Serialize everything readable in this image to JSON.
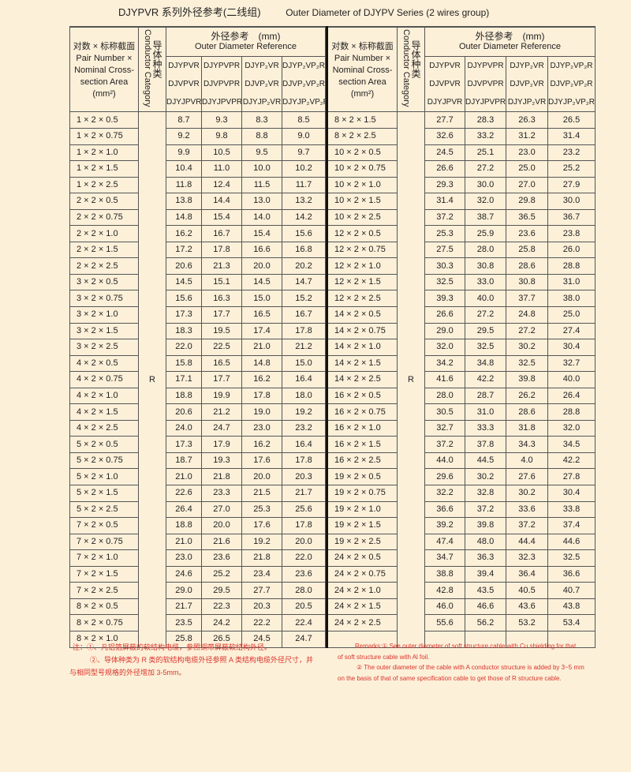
{
  "title": {
    "cn": "DJYPVR 系列外径参考(二线组)",
    "en": "Outer Diameter of DJYPV Series (2 wires group)"
  },
  "header": {
    "size_cn": "对数 × 标称截面",
    "size_en_1": "Pair Number ×",
    "size_en_2": "Nominal Cross-",
    "size_en_3": "section Area",
    "size_unit": "(mm²)",
    "conductor_en": "Conductor Category",
    "conductor_cn": "导体种类",
    "od_cn": "外径参考　(mm)",
    "od_en": "Outer Diameter Reference",
    "models": [
      [
        "DJYPVR",
        "DJVPVR",
        "DJYJPVR"
      ],
      [
        "DJYPVPR",
        "DJVPVPR",
        "DJYJPVPR"
      ],
      [
        "DJYP₂VR",
        "DJVP₂VR",
        "DJYJP₂VR"
      ],
      [
        "DJYP₂VP₂R",
        "DJVP₂VP₂R",
        "DJYJP₂VP₂R"
      ]
    ]
  },
  "conductor_value": "R",
  "left_rows": [
    [
      "1 × 2 × 0.5",
      "8.7",
      "9.3",
      "8.3",
      "8.5"
    ],
    [
      "1 × 2 × 0.75",
      "9.2",
      "9.8",
      "8.8",
      "9.0"
    ],
    [
      "1 × 2 × 1.0",
      "9.9",
      "10.5",
      "9.5",
      "9.7"
    ],
    [
      "1 × 2 × 1.5",
      "10.4",
      "11.0",
      "10.0",
      "10.2"
    ],
    [
      "1 × 2 × 2.5",
      "11.8",
      "12.4",
      "11.5",
      "11.7"
    ],
    [
      "2 × 2 × 0.5",
      "13.8",
      "14.4",
      "13.0",
      "13.2"
    ],
    [
      "2 × 2 × 0.75",
      "14.8",
      "15.4",
      "14.0",
      "14.2"
    ],
    [
      "2 × 2 × 1.0",
      "16.2",
      "16.7",
      "15.4",
      "15.6"
    ],
    [
      "2 × 2 × 1.5",
      "17.2",
      "17.8",
      "16.6",
      "16.8"
    ],
    [
      "2 × 2 × 2.5",
      "20.6",
      "21.3",
      "20.0",
      "20.2"
    ],
    [
      "3 × 2 × 0.5",
      "14.5",
      "15.1",
      "14.5",
      "14.7"
    ],
    [
      "3 × 2 × 0.75",
      "15.6",
      "16.3",
      "15.0",
      "15.2"
    ],
    [
      "3 × 2 × 1.0",
      "17.3",
      "17.7",
      "16.5",
      "16.7"
    ],
    [
      "3 × 2 × 1.5",
      "18.3",
      "19.5",
      "17.4",
      "17.8"
    ],
    [
      "3 × 2 × 2.5",
      "22.0",
      "22.5",
      "21.0",
      "21.2"
    ],
    [
      "4 × 2 × 0.5",
      "15.8",
      "16.5",
      "14.8",
      "15.0"
    ],
    [
      "4 × 2 × 0.75",
      "17.1",
      "17.7",
      "16.2",
      "16.4"
    ],
    [
      "4 × 2 × 1.0",
      "18.8",
      "19.9",
      "17.8",
      "18.0"
    ],
    [
      "4 × 2 × 1.5",
      "20.6",
      "21.2",
      "19.0",
      "19.2"
    ],
    [
      "4 × 2 × 2.5",
      "24.0",
      "24.7",
      "23.0",
      "23.2"
    ],
    [
      "5 × 2 × 0.5",
      "17.3",
      "17.9",
      "16.2",
      "16.4"
    ],
    [
      "5 × 2 × 0.75",
      "18.7",
      "19.3",
      "17.6",
      "17.8"
    ],
    [
      "5 × 2 × 1.0",
      "21.0",
      "21.8",
      "20.0",
      "20.3"
    ],
    [
      "5 × 2 × 1.5",
      "22.6",
      "23.3",
      "21.5",
      "21.7"
    ],
    [
      "5 × 2 × 2.5",
      "26.4",
      "27.0",
      "25.3",
      "25.6"
    ],
    [
      "7 × 2 × 0.5",
      "18.8",
      "20.0",
      "17.6",
      "17.8"
    ],
    [
      "7 × 2 × 0.75",
      "21.0",
      "21.6",
      "19.2",
      "20.0"
    ],
    [
      "7 × 2 × 1.0",
      "23.0",
      "23.6",
      "21.8",
      "22.0"
    ],
    [
      "7 × 2 × 1.5",
      "24.6",
      "25.2",
      "23.4",
      "23.6"
    ],
    [
      "7 × 2 × 2.5",
      "29.0",
      "29.5",
      "27.7",
      "28.0"
    ],
    [
      "8 × 2 × 0.5",
      "21.7",
      "22.3",
      "20.3",
      "20.5"
    ],
    [
      "8 × 2 × 0.75",
      "23.5",
      "24.2",
      "22.2",
      "22.4"
    ],
    [
      "8 × 2 × 1.0",
      "25.8",
      "26.5",
      "24.5",
      "24.7"
    ]
  ],
  "right_rows": [
    [
      "8 × 2 × 1.5",
      "27.7",
      "28.3",
      "26.3",
      "26.5"
    ],
    [
      "8 × 2 × 2.5",
      "32.6",
      "33.2",
      "31.2",
      "31.4"
    ],
    [
      "10 × 2 × 0.5",
      "24.5",
      "25.1",
      "23.0",
      "23.2"
    ],
    [
      "10 × 2 × 0.75",
      "26.6",
      "27.2",
      "25.0",
      "25.2"
    ],
    [
      "10 × 2 × 1.0",
      "29.3",
      "30.0",
      "27.0",
      "27.9"
    ],
    [
      "10 × 2 × 1.5",
      "31.4",
      "32.0",
      "29.8",
      "30.0"
    ],
    [
      "10 × 2 × 2.5",
      "37.2",
      "38.7",
      "36.5",
      "36.7"
    ],
    [
      "12 × 2 × 0.5",
      "25.3",
      "25.9",
      "23.6",
      "23.8"
    ],
    [
      "12 × 2 × 0.75",
      "27.5",
      "28.0",
      "25.8",
      "26.0"
    ],
    [
      "12 × 2 × 1.0",
      "30.3",
      "30.8",
      "28.6",
      "28.8"
    ],
    [
      "12 × 2 × 1.5",
      "32.5",
      "33.0",
      "30.8",
      "31.0"
    ],
    [
      "12 × 2 × 2.5",
      "39.3",
      "40.0",
      "37.7",
      "38.0"
    ],
    [
      "14 × 2 × 0.5",
      "26.6",
      "27.2",
      "24.8",
      "25.0"
    ],
    [
      "14 × 2 × 0.75",
      "29.0",
      "29.5",
      "27.2",
      "27.4"
    ],
    [
      "14 × 2 × 1.0",
      "32.0",
      "32.5",
      "30.2",
      "30.4"
    ],
    [
      "14 × 2 × 1.5",
      "34.2",
      "34.8",
      "32.5",
      "32.7"
    ],
    [
      "14 × 2 × 2.5",
      "41.6",
      "42.2",
      "39.8",
      "40.0"
    ],
    [
      "16 × 2 × 0.5",
      "28.0",
      "28.7",
      "26.2",
      "26.4"
    ],
    [
      "16 × 2 × 0.75",
      "30.5",
      "31.0",
      "28.6",
      "28.8"
    ],
    [
      "16 × 2 × 1.0",
      "32.7",
      "33.3",
      "31.8",
      "32.0"
    ],
    [
      "16 × 2 × 1.5",
      "37.2",
      "37.8",
      "34.3",
      "34.5"
    ],
    [
      "16 × 2 × 2.5",
      "44.0",
      "44.5",
      "4.0",
      "42.2"
    ],
    [
      "19 × 2 × 0.5",
      "29.6",
      "30.2",
      "27.6",
      "27.8"
    ],
    [
      "19 × 2 × 0.75",
      "32.2",
      "32.8",
      "30.2",
      "30.4"
    ],
    [
      "19 × 2 × 1.0",
      "36.6",
      "37.2",
      "33.6",
      "33.8"
    ],
    [
      "19 × 2 × 1.5",
      "39.2",
      "39.8",
      "37.2",
      "37.4"
    ],
    [
      "19 × 2 × 2.5",
      "47.4",
      "48.0",
      "44.4",
      "44.6"
    ],
    [
      "24 × 2 × 0.5",
      "34.7",
      "36.3",
      "32.3",
      "32.5"
    ],
    [
      "24 × 2 × 0.75",
      "38.8",
      "39.4",
      "36.4",
      "36.6"
    ],
    [
      "24 × 2 × 1.0",
      "42.8",
      "43.5",
      "40.5",
      "40.7"
    ],
    [
      "24 × 2 × 1.5",
      "46.0",
      "46.6",
      "43.6",
      "43.8"
    ],
    [
      "24 × 2 × 2.5",
      "55.6",
      "56.2",
      "53.2",
      "53.4"
    ],
    [
      "",
      "",
      "",
      "",
      ""
    ]
  ],
  "notes_cn": {
    "line1": "注：①、凡铝箔屏蔽的软结构电缆，参照铜带屏蔽软结构外径。",
    "line2": "②、导体种类为 R 类的软结构电缆外径参照 A 类结构电缆外径尺寸，并",
    "line3": "与相同型号规格的外径增加 3-5mm。"
  },
  "notes_en": {
    "line1": "Remarks:① See outer diameter of soft structure cable with Cu shielding for that",
    "line2": "of soft structure cable with Al foil.",
    "line3": "② The outer diameter of the cable with A conductor structure is added by 3~5 mm",
    "line4": "on the basis of that of same specification cable to get those of R structure cable."
  },
  "colors": {
    "background": "#fdf0d9",
    "note_text": "#d9342b",
    "grid": "#555555"
  }
}
